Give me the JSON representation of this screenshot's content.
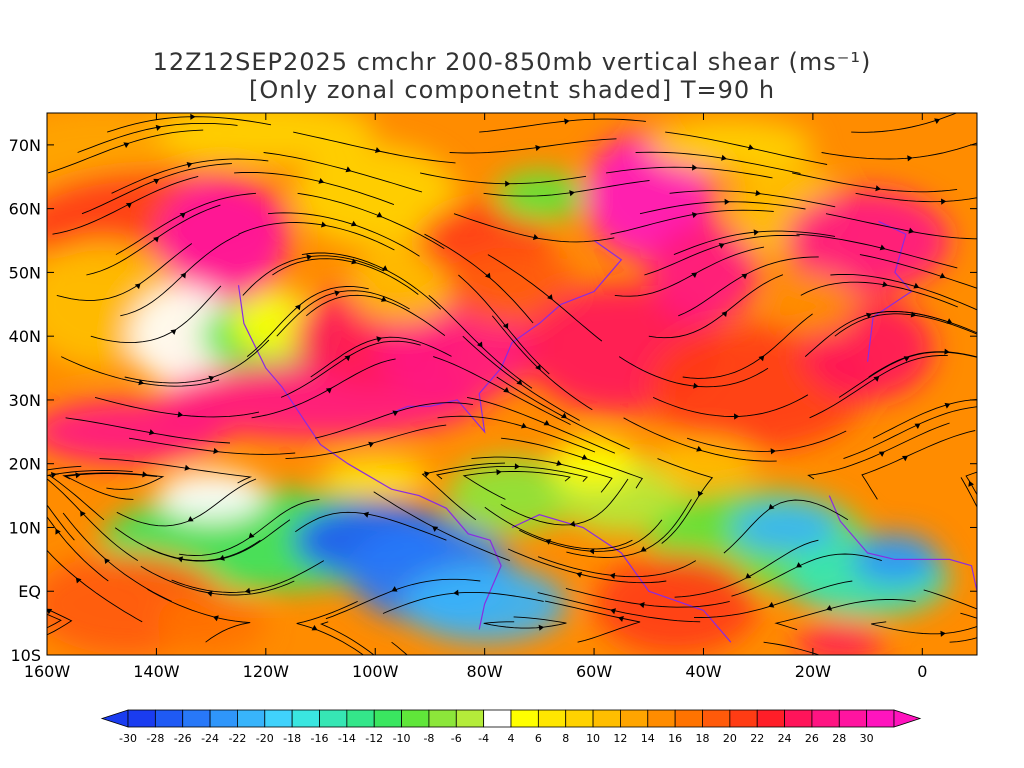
{
  "title": {
    "line1": "12Z12SEP2025 cmchr 200-850mb vertical shear (ms⁻¹)",
    "line2": "[Only zonal componetnt shaded] T=90 h"
  },
  "axes": {
    "lat_labels": [
      "70N",
      "60N",
      "50N",
      "40N",
      "30N",
      "20N",
      "10N",
      "EQ",
      "10S"
    ],
    "lat_values": [
      70,
      60,
      50,
      40,
      30,
      20,
      10,
      0,
      -10
    ],
    "lon_labels": [
      "160W",
      "140W",
      "120W",
      "100W",
      "80W",
      "60W",
      "40W",
      "20W",
      "0"
    ],
    "lon_values": [
      -160,
      -140,
      -120,
      -100,
      -80,
      -60,
      -40,
      -20,
      0
    ],
    "lon_range": [
      -160,
      10
    ],
    "lat_range": [
      -10,
      75
    ]
  },
  "colorbar": {
    "labels": [
      "-30",
      "-28",
      "-26",
      "-24",
      "-22",
      "-20",
      "-18",
      "-16",
      "-14",
      "-12",
      "-10",
      "-8",
      "-6",
      "-4",
      "4",
      "6",
      "8",
      "10",
      "12",
      "14",
      "16",
      "18",
      "20",
      "22",
      "24",
      "26",
      "28",
      "30"
    ],
    "colors": [
      "#1a3cf0",
      "#1f5af5",
      "#2878f8",
      "#2f96fa",
      "#38b4fb",
      "#40d2fc",
      "#3ae6e0",
      "#36e6b4",
      "#34e68a",
      "#3ae660",
      "#60e63a",
      "#8ce63a",
      "#b4ec3a",
      "#ffffff",
      "#ffff00",
      "#ffe600",
      "#ffd200",
      "#ffbe00",
      "#ffa500",
      "#ff8c00",
      "#ff7300",
      "#ff5a0a",
      "#ff3c14",
      "#ff1e28",
      "#ff145a",
      "#ff1482",
      "#ff14a0",
      "#ff14be"
    ]
  },
  "map": {
    "shading": "zonal component of 200-850mb vertical shear",
    "overlay": "shear streamlines with arrowheads",
    "coastlines_color": "#8a2be2"
  }
}
